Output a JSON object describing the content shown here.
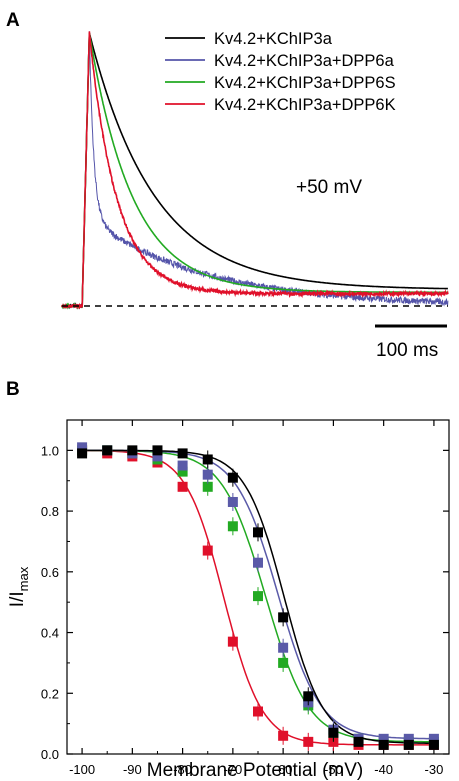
{
  "chart_data": [
    {
      "panel": "A",
      "type": "line",
      "annotation": "+50 mV",
      "scale_bar": "100 ms",
      "baseline": "dashed zero-current line",
      "legend": "top-right",
      "series": [
        {
          "name": "Kv4.2+KChIP3a",
          "color": "#000000",
          "peak": 1.0,
          "tau_ms": 90,
          "steady": 0.06,
          "noise": 0.0
        },
        {
          "name": "Kv4.2+KChIP3a+DPP6a",
          "color": "#5555aa",
          "peak": 1.0,
          "tau_ms": 6,
          "steady": 0.28,
          "fast_fraction": 0.6,
          "slow_tau_ms": 160,
          "noise": 0.012
        },
        {
          "name": "Kv4.2+KChIP3a+DPP6S",
          "color": "#22aa22",
          "peak": 1.0,
          "tau_ms": 60,
          "steady": 0.05,
          "noise": 0.0
        },
        {
          "name": "Kv4.2+KChIP3a+DPP6K",
          "color": "#e0102a",
          "peak": 1.0,
          "tau_ms": 38,
          "steady": 0.045,
          "noise": 0.006
        }
      ]
    },
    {
      "panel": "B",
      "type": "scatter",
      "xlabel": "Membrane Potential (mV)",
      "ylabel_main": "I/I",
      "ylabel_sub": "max",
      "xlim": [
        -103,
        -27
      ],
      "ylim": [
        0,
        1.1
      ],
      "xticks": [
        -100,
        -90,
        -80,
        -70,
        -60,
        -50,
        -40,
        -30
      ],
      "yticks": [
        0.0,
        0.2,
        0.4,
        0.6,
        0.8,
        1.0
      ],
      "fit": "Boltzmann",
      "series": [
        {
          "name": "Kv4.2+KChIP3a+DPP6K",
          "color": "#e0102a",
          "v_half": -71.8,
          "slope": 3.8,
          "bottom": 0.03,
          "x": [
            -100,
            -95,
            -90,
            -85,
            -80,
            -75,
            -70,
            -65,
            -60,
            -55,
            -50,
            -45,
            -40,
            -35,
            -30
          ],
          "y": [
            1.0,
            0.99,
            0.98,
            0.96,
            0.88,
            0.67,
            0.37,
            0.14,
            0.06,
            0.04,
            0.04,
            0.03,
            0.03,
            0.03,
            0.03
          ]
        },
        {
          "name": "Kv4.2+KChIP3a+DPP6S",
          "color": "#22aa22",
          "v_half": -63.5,
          "slope": 4.3,
          "bottom": 0.04,
          "x": [
            -100,
            -95,
            -90,
            -85,
            -80,
            -75,
            -70,
            -65,
            -60,
            -55,
            -50,
            -45,
            -40,
            -35,
            -30
          ],
          "y": [
            1.0,
            1.0,
            0.99,
            0.97,
            0.93,
            0.88,
            0.75,
            0.52,
            0.3,
            0.16,
            0.07,
            0.05,
            0.04,
            0.04,
            0.04
          ]
        },
        {
          "name": "Kv4.2+KChIP3a+DPP6a",
          "color": "#5a5aa8",
          "v_half": -61.0,
          "slope": 4.2,
          "bottom": 0.05,
          "x": [
            -100,
            -95,
            -90,
            -85,
            -80,
            -75,
            -70,
            -65,
            -60,
            -55,
            -50,
            -45,
            -40,
            -35,
            -30
          ],
          "y": [
            1.01,
            1.0,
            0.99,
            0.98,
            0.95,
            0.92,
            0.83,
            0.63,
            0.35,
            0.17,
            0.08,
            0.05,
            0.05,
            0.05,
            0.05
          ]
        },
        {
          "name": "Kv4.2+KChIP3a",
          "color": "#000000",
          "v_half": -59.8,
          "slope": 3.9,
          "bottom": 0.035,
          "x": [
            -100,
            -95,
            -90,
            -85,
            -80,
            -75,
            -70,
            -65,
            -60,
            -55,
            -50,
            -45,
            -40,
            -35,
            -30
          ],
          "y": [
            0.99,
            1.0,
            1.0,
            1.0,
            0.99,
            0.97,
            0.91,
            0.73,
            0.45,
            0.19,
            0.07,
            0.04,
            0.03,
            0.03,
            0.03
          ]
        }
      ]
    }
  ],
  "labels": {
    "panel_a": "A",
    "panel_b": "B"
  }
}
